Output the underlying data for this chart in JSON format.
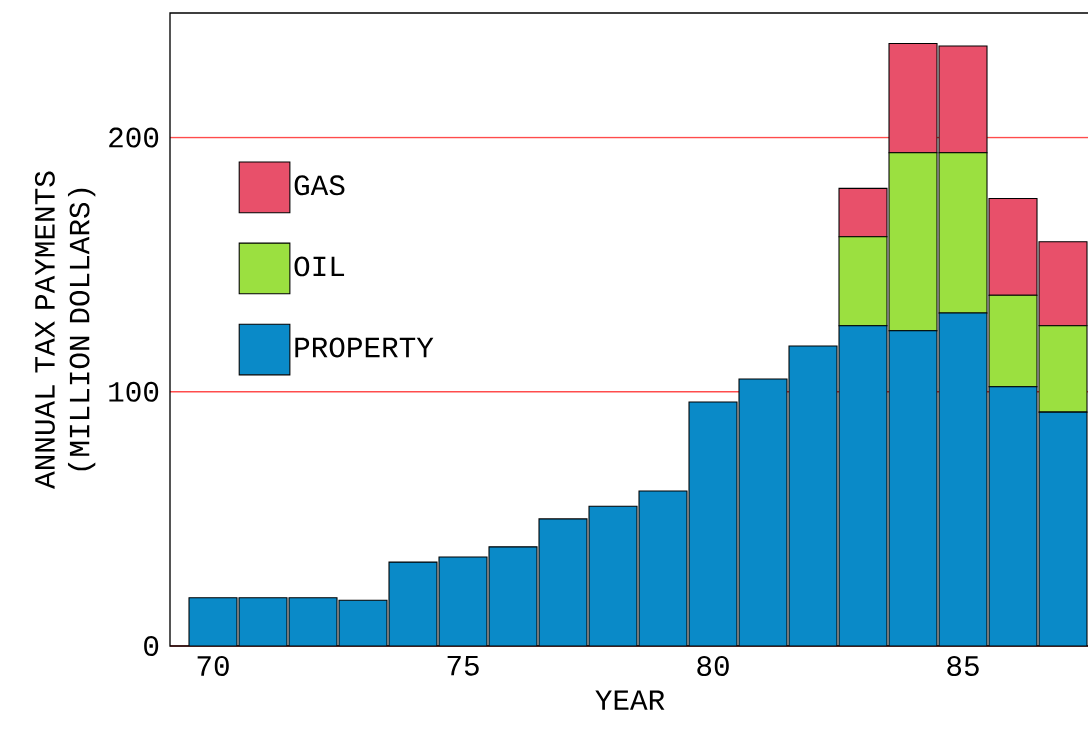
{
  "chart_data": {
    "type": "bar",
    "stacked": true,
    "xlabel": "YEAR",
    "ylabel": "ANNUAL TAX PAYMENTS (MILLION DOLLARS)",
    "categories": [
      "70",
      null,
      null,
      null,
      null,
      "75",
      null,
      null,
      null,
      null,
      "80",
      null,
      null,
      null,
      null,
      "85",
      null,
      null
    ],
    "series": [
      {
        "name": "PROPERTY",
        "color": "#0a8ac8",
        "values": [
          19,
          19,
          19,
          18,
          33,
          35,
          39,
          50,
          55,
          61,
          96,
          105,
          118,
          126,
          124,
          131,
          102,
          92
        ]
      },
      {
        "name": "OIL",
        "color": "#9be040",
        "values": [
          0,
          0,
          0,
          0,
          0,
          0,
          0,
          0,
          0,
          0,
          0,
          0,
          0,
          35,
          70,
          63,
          36,
          34
        ]
      },
      {
        "name": "GAS",
        "color": "#e8506a",
        "values": [
          0,
          0,
          0,
          0,
          0,
          0,
          0,
          0,
          0,
          0,
          0,
          0,
          0,
          19,
          43,
          42,
          38,
          33
        ]
      }
    ],
    "ylim": [
      0,
      249
    ],
    "yticks": [
      0,
      100,
      200
    ],
    "grid": "y",
    "legend": "top left"
  }
}
